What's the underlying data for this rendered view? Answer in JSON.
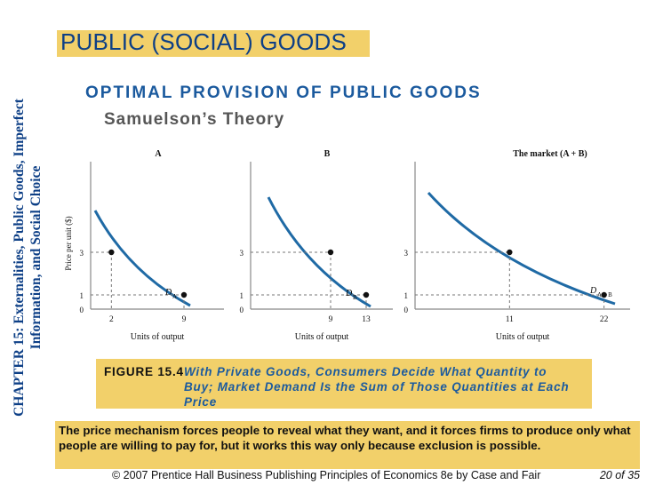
{
  "side": {
    "line1": "CHAPTER 15:  Externalities, Public Goods, Imperfect",
    "line2": "Information, and Social Choice"
  },
  "title": "PUBLIC (SOCIAL) GOODS",
  "subhead": "OPTIMAL PROVISION OF PUBLIC GOODS",
  "subsub": "Samuelson’s Theory",
  "chart_data": [
    {
      "type": "line",
      "title": "A",
      "xlabel": "Units of output",
      "ylabel": "Price per unit ($)",
      "x_ticks": [
        "2",
        "9"
      ],
      "y_ticks": [
        "3",
        "1",
        "0"
      ],
      "curve_label": "D",
      "curve_sub": "A",
      "points": [
        {
          "x": 2,
          "y": 3
        },
        {
          "x": 9,
          "y": 1
        }
      ]
    },
    {
      "type": "line",
      "title": "B",
      "xlabel": "Units of output",
      "ylabel": "",
      "x_ticks": [
        "9",
        "13"
      ],
      "y_ticks": [
        "3",
        "1",
        "0"
      ],
      "curve_label": "D",
      "curve_sub": "B",
      "points": [
        {
          "x": 9,
          "y": 3
        },
        {
          "x": 13,
          "y": 1
        }
      ]
    },
    {
      "type": "line",
      "title": "The market (A + B)",
      "xlabel": "Units of output",
      "ylabel": "",
      "x_ticks": [
        "11",
        "22"
      ],
      "y_ticks": [
        "3",
        "1",
        "0"
      ],
      "curve_label": "D",
      "curve_sub": "A + B",
      "points": [
        {
          "x": 11,
          "y": 3
        },
        {
          "x": 22,
          "y": 1
        }
      ]
    }
  ],
  "caption": {
    "number": "FIGURE 15.4",
    "text1": "With Private Goods, Consumers Decide What Quantity to",
    "text2": "Buy; Market Demand Is the Sum of Those Quantities at Each",
    "text3": "Price"
  },
  "note": "The price mechanism forces people to reveal what they want, and it forces firms to produce only what people are willing to pay for, but it works this way only because exclusion is possible.",
  "footer": "© 2007 Prentice Hall Business Publishing   Principles of Economics 8e by Case and Fair",
  "page": "20 of 35",
  "colors": {
    "title": "#0d3f86",
    "highlight": "#f2d06a",
    "curve": "#1f6aa5"
  }
}
